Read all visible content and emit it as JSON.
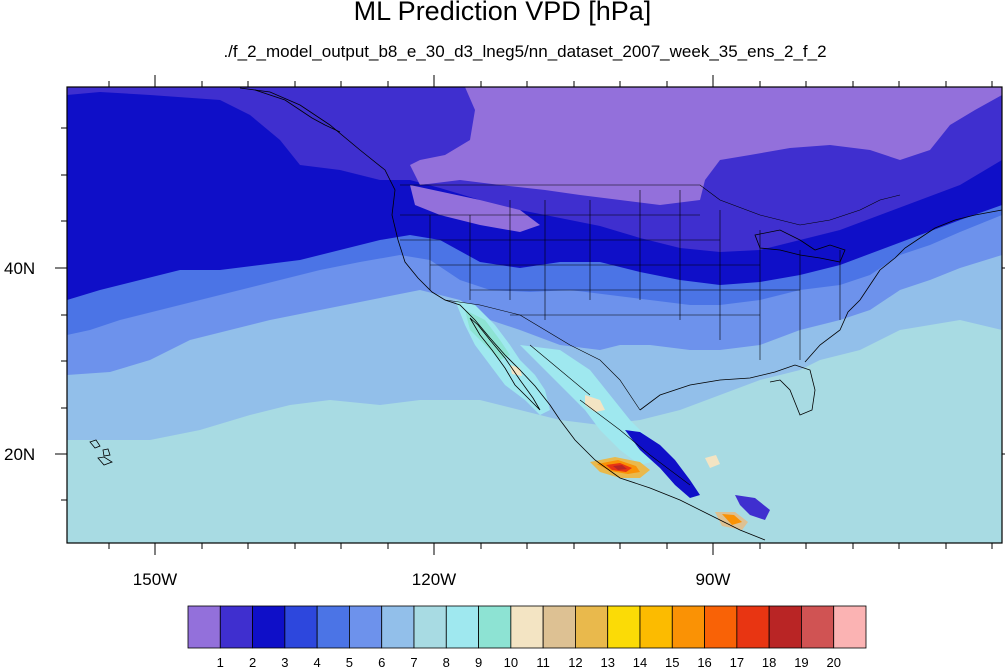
{
  "title": "ML Prediction VPD [hPa]",
  "subtitle": "./f_2_model_output_b8_e_30_d3_lneg5/nn_dataset_2007_week_35_ens_2_f_2",
  "axes": {
    "lon_labels": [
      "150W",
      "120W",
      "90W"
    ],
    "lat_labels": [
      "40N",
      "20N"
    ],
    "lon_range": [
      -159.5,
      -60.5
    ],
    "lat_range": [
      10.5,
      59.5
    ]
  },
  "colorbar": {
    "labels": [
      "1",
      "2",
      "3",
      "4",
      "5",
      "6",
      "7",
      "8",
      "9",
      "10",
      "11",
      "12",
      "13",
      "14",
      "15",
      "16",
      "17",
      "18",
      "19",
      "20"
    ],
    "colors": [
      "#9370db",
      "#3f2fcf",
      "#0f0fc8",
      "#2d47dd",
      "#4b74e6",
      "#6d92ec",
      "#92bfea",
      "#a8dbe3",
      "#9fe8ef",
      "#8de3d3",
      "#f3e4c3",
      "#ddc193",
      "#e9b94c",
      "#fbdb06",
      "#fcbb00",
      "#fa9205",
      "#f96206",
      "#e83512",
      "#b92525",
      "#d05353",
      "#fbb3b3"
    ]
  },
  "map": {
    "variable": "VPD",
    "units": "hPa",
    "projection": "cylindrical-equidistant",
    "background_level": "7-8",
    "features": [
      "coastlines",
      "US state borders",
      "national borders"
    ]
  }
}
